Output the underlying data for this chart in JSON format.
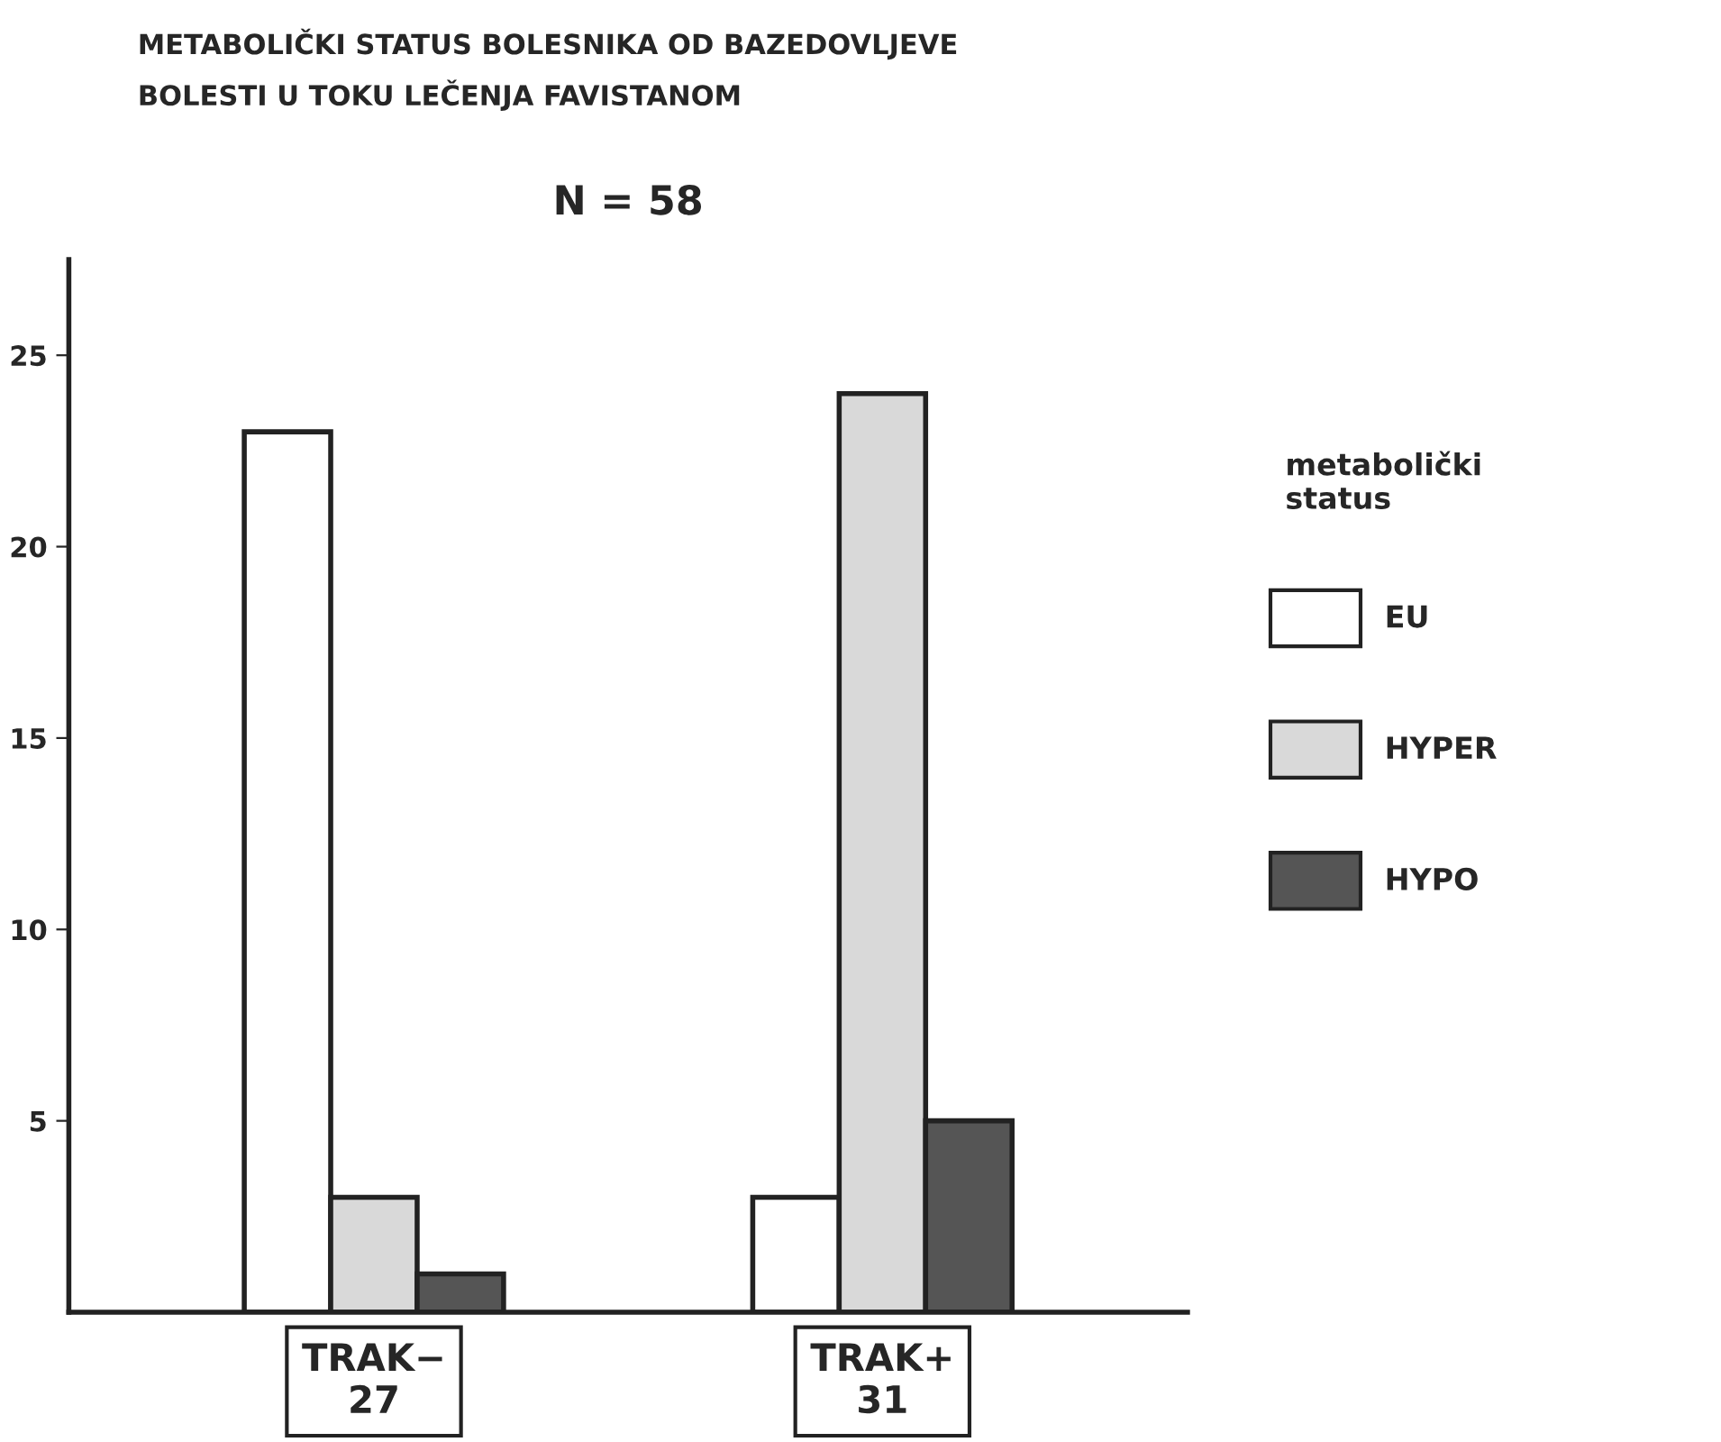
{
  "chart_data": {
    "type": "bar",
    "title": "METABOLIČKI STATUS BOLESNIKA OD BAZEDOVLJEVE\nBOLESTI U TOKU LEČENJA FAVISTANOM",
    "subtitle": "N = 58",
    "categories": [
      "TRAK−\n27",
      "TRAK+\n31"
    ],
    "series": [
      {
        "name": "EU",
        "color": "#ffffff",
        "values": [
          23,
          3
        ]
      },
      {
        "name": "HYPER",
        "color": "#d9d9d9",
        "values": [
          3,
          24
        ]
      },
      {
        "name": "HYPO",
        "color": "#555555",
        "values": [
          1,
          5
        ]
      }
    ],
    "ylim": [
      0,
      27.5
    ],
    "yticks": [
      5,
      10,
      15,
      20,
      25
    ],
    "grid": false,
    "legend": "right",
    "legend_title": "metabolički\nstatus"
  }
}
